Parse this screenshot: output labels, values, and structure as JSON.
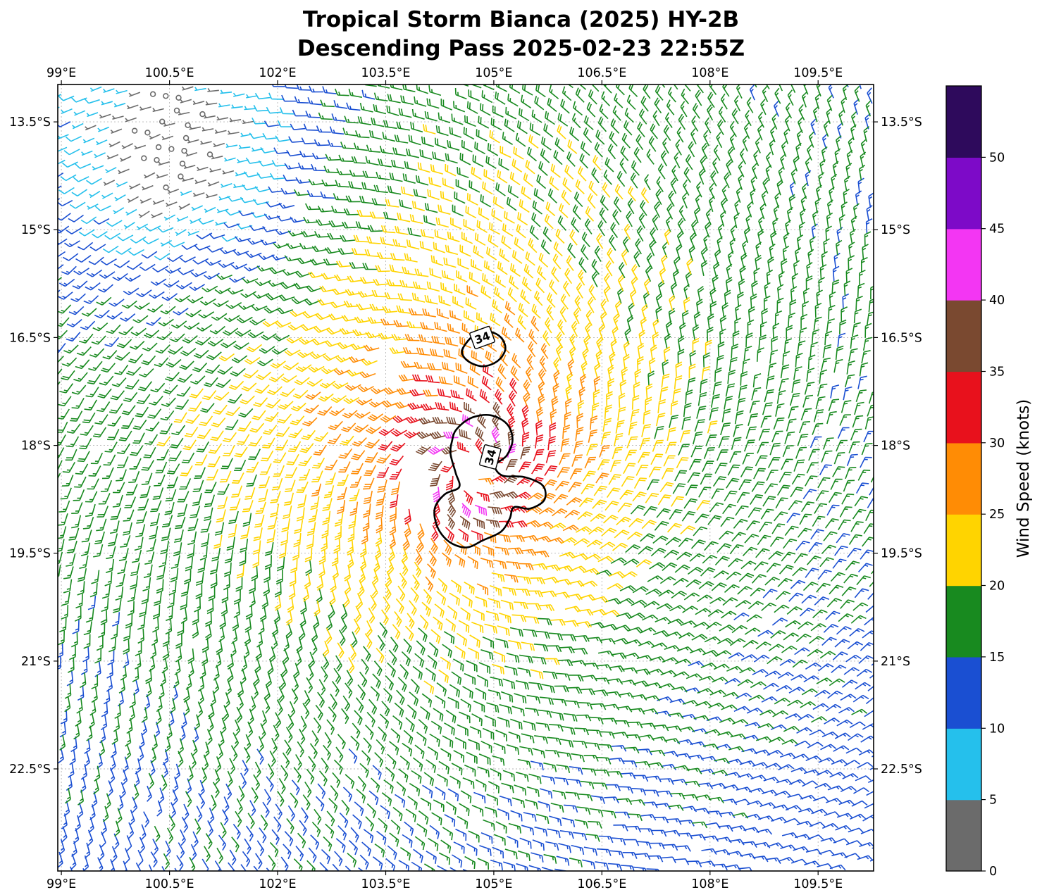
{
  "title": {
    "line1": "Tropical Storm Bianca (2025) HY-2B",
    "line2": "Descending Pass 2025-02-23 22:55Z"
  },
  "axes": {
    "x_ticks": [
      "99°E",
      "100.5°E",
      "102°E",
      "103.5°E",
      "105°E",
      "106.5°E",
      "108°E",
      "109.5°E"
    ],
    "x_tick_lons": [
      99,
      100.5,
      102,
      103.5,
      105,
      106.5,
      108,
      109.5
    ],
    "y_ticks": [
      "13.5°S",
      "15°S",
      "16.5°S",
      "18°S",
      "19.5°S",
      "21°S",
      "22.5°S"
    ],
    "y_tick_lats": [
      -13.5,
      -15,
      -16.5,
      -18,
      -19.5,
      -21,
      -22.5
    ],
    "lon_range": [
      98.95,
      110.27
    ],
    "lat_range": [
      -23.92,
      -12.98
    ],
    "grid_on": true
  },
  "colorbar": {
    "label": "Wind Speed (knots)",
    "tick_values": [
      0,
      5,
      10,
      15,
      20,
      25,
      30,
      35,
      40,
      45,
      50
    ],
    "segment_bounds": [
      0,
      5,
      10,
      15,
      20,
      25,
      30,
      35,
      40,
      45,
      50,
      55
    ],
    "colors": [
      "#6b6b6b",
      "#25c0ec",
      "#1a4fd2",
      "#188a1f",
      "#ffd400",
      "#ff8c05",
      "#e8111c",
      "#7a4930",
      "#f336f3",
      "#7d0ac8",
      "#2e0a5c"
    ]
  },
  "chart_data": {
    "type": "wind_barb_map",
    "units": "knots",
    "description": "HY-2B scatterometer surface wind barbs of Tropical Storm Bianca: cyclonic clockwise (Southern Hemisphere) circulation centered near 104.7E 18.3S, peak winds 35-42 kt in the core (small 40-45 kt magenta patch), decreasing outward through red/orange/yellow/green rings to 5-15 kt blue/cyan at the domain edges, a near-calm gray patch near 100.7E 13.8S, and black contours enclosing the 34-kt wind radii",
    "barb_grid_spacing_deg": 0.18,
    "grid_rotation_deg": -8,
    "speed_bins_knots": [
      0,
      5,
      10,
      15,
      20,
      25,
      30,
      35,
      40,
      45,
      50,
      55
    ],
    "storm": {
      "center_lon": 104.7,
      "center_lat": -18.33,
      "vmax": 40,
      "rmax": 0.5,
      "decay_exp": 0.38,
      "inflow_rad": 0.42,
      "asymmetry_amp": 2.0,
      "asymmetry_phase": 2.0,
      "calm_zone": {
        "lon": 100.7,
        "lat": -13.8,
        "amp": 16,
        "sigma": 1.3
      },
      "peak_patch": {
        "lon": 104.62,
        "lat": -18.92,
        "amp": 6.5,
        "sigma": 0.16
      }
    },
    "voids": [
      {
        "lon": 104.7,
        "lat": -18.33,
        "rx": 0.17,
        "ry": 0.15
      },
      {
        "lon": 104.0,
        "lat": -18.45,
        "rx": 0.17,
        "ry": 0.6
      },
      {
        "lon": 104.5,
        "lat": -19.72,
        "rx": 0.34,
        "ry": 0.16
      },
      {
        "lon": 103.62,
        "lat": -16.9,
        "rx": 0.15,
        "ry": 0.32
      }
    ],
    "contours": [
      {
        "label": "34",
        "label_pos": [
          104.84,
          -16.5
        ],
        "label_rotation": -20,
        "points": [
          [
            104.6,
            -16.6
          ],
          [
            104.74,
            -16.46
          ],
          [
            104.94,
            -16.42
          ],
          [
            105.1,
            -16.5
          ],
          [
            105.16,
            -16.66
          ],
          [
            105.06,
            -16.82
          ],
          [
            104.86,
            -16.9
          ],
          [
            104.66,
            -16.84
          ],
          [
            104.56,
            -16.72
          ]
        ]
      },
      {
        "label": "34",
        "label_pos": [
          104.95,
          -18.16
        ],
        "label_rotation": -75,
        "points": [
          [
            104.48,
            -17.78
          ],
          [
            104.68,
            -17.62
          ],
          [
            104.95,
            -17.58
          ],
          [
            105.18,
            -17.7
          ],
          [
            105.26,
            -17.92
          ],
          [
            105.18,
            -18.14
          ],
          [
            105.02,
            -18.28
          ],
          [
            105.12,
            -18.42
          ],
          [
            105.42,
            -18.44
          ],
          [
            105.68,
            -18.56
          ],
          [
            105.7,
            -18.76
          ],
          [
            105.5,
            -18.88
          ],
          [
            105.28,
            -18.86
          ],
          [
            105.22,
            -19.02
          ],
          [
            105.1,
            -19.2
          ],
          [
            104.85,
            -19.32
          ],
          [
            104.62,
            -19.42
          ],
          [
            104.38,
            -19.34
          ],
          [
            104.22,
            -19.14
          ],
          [
            104.18,
            -18.88
          ],
          [
            104.32,
            -18.68
          ],
          [
            104.52,
            -18.58
          ],
          [
            104.47,
            -18.38
          ],
          [
            104.4,
            -18.12
          ],
          [
            104.42,
            -17.94
          ]
        ]
      }
    ]
  }
}
